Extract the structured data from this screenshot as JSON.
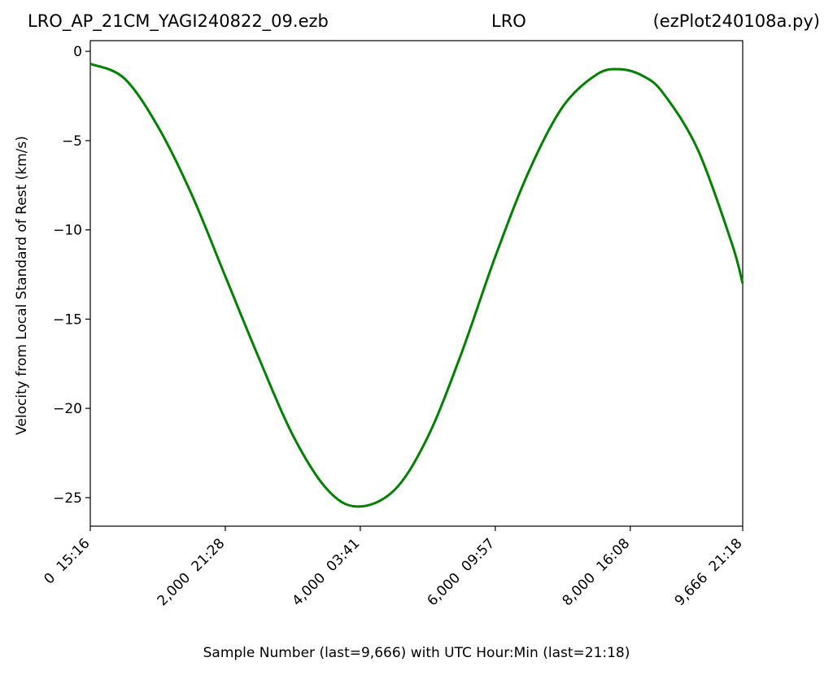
{
  "title": {
    "left": "LRO_AP_21CM_YAGI240822_09.ezb",
    "center": "LRO",
    "right": "(ezPlot240108a.py)"
  },
  "chart_data": {
    "type": "line",
    "xlabel": "Sample Number (last=9,666) with UTC Hour:Min (last=21:18)",
    "ylabel": "Velocity from Local Standard of Rest (km/s)",
    "xlim": [
      0,
      9666
    ],
    "ylim": [
      -26.6,
      0.6
    ],
    "xticks": [
      {
        "value": 0,
        "label": "0  15:16"
      },
      {
        "value": 2000,
        "label": "2,000  21:28"
      },
      {
        "value": 4000,
        "label": "4,000  03:41"
      },
      {
        "value": 6000,
        "label": "6,000  09:57"
      },
      {
        "value": 8000,
        "label": "8,000  16:08"
      },
      {
        "value": 9666,
        "label": "9,666  21:18"
      }
    ],
    "yticks": [
      {
        "value": 0,
        "label": "0"
      },
      {
        "value": -5,
        "label": "−5"
      },
      {
        "value": -10,
        "label": "−10"
      },
      {
        "value": -15,
        "label": "−15"
      },
      {
        "value": -20,
        "label": "−20"
      },
      {
        "value": -25,
        "label": "−25"
      }
    ],
    "grid": false,
    "series": [
      {
        "color": "#008000",
        "x": [
          0,
          500,
          1000,
          1500,
          2000,
          2500,
          3000,
          3500,
          3950,
          4500,
          5000,
          5500,
          6000,
          6500,
          7000,
          7500,
          7850,
          8200,
          8500,
          9000,
          9500,
          9666
        ],
        "y": [
          -0.7,
          -1.5,
          -4.2,
          -8.0,
          -12.6,
          -17.2,
          -21.5,
          -24.5,
          -25.5,
          -24.6,
          -21.6,
          -16.9,
          -11.5,
          -6.7,
          -3.1,
          -1.3,
          -1.0,
          -1.4,
          -2.4,
          -5.5,
          -10.7,
          -13.0
        ]
      }
    ]
  }
}
